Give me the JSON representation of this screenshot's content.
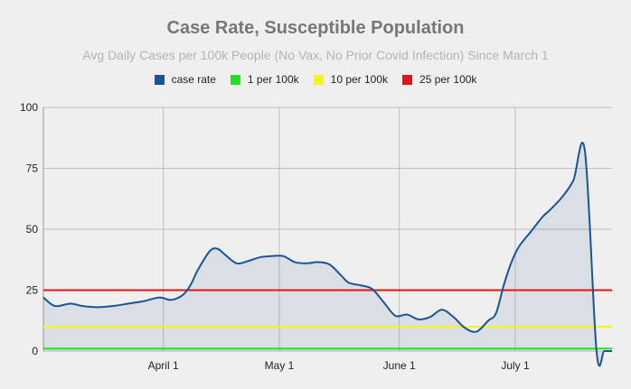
{
  "chart_data": {
    "type": "line",
    "title": "Case Rate, Susceptible Population",
    "subtitle": "Avg Daily Cases per 100k People (No Vax, No Prior Covid Infection) Since March 1",
    "xlabel": "",
    "ylabel": "",
    "ylim": [
      0,
      100
    ],
    "yticks": [
      "0",
      "25",
      "50",
      "75",
      "100"
    ],
    "xlim_days": [
      0,
      147
    ],
    "xticks": [
      {
        "label": "April 1",
        "day": 31
      },
      {
        "label": "May 1",
        "day": 61
      },
      {
        "label": "June 1",
        "day": 92
      },
      {
        "label": "July 1",
        "day": 122
      }
    ],
    "grid": true,
    "legend_position": "top",
    "series": [
      {
        "name": "case rate",
        "color": "#1a5496",
        "fill": true,
        "x": [
          0,
          3,
          7,
          10,
          14,
          18,
          22,
          26,
          30,
          33,
          36,
          38,
          40,
          43,
          45,
          47,
          50,
          53,
          56,
          59,
          62,
          65,
          68,
          71,
          74,
          77,
          79,
          82,
          85,
          88,
          91,
          94,
          97,
          100,
          103,
          106,
          109,
          112,
          115,
          117,
          119,
          121,
          123,
          126,
          129,
          131,
          134,
          137,
          140,
          143,
          145,
          147
        ],
        "y": [
          22,
          18.5,
          19.5,
          18.5,
          18,
          18.5,
          19.5,
          20.5,
          22,
          21,
          23,
          27,
          33.5,
          41,
          42,
          39.5,
          36,
          37,
          38.5,
          39,
          39,
          36.5,
          36,
          36.5,
          35.5,
          31,
          28,
          27,
          25.5,
          20,
          14.5,
          15,
          13,
          14,
          17,
          14,
          9.5,
          8,
          12.5,
          15.5,
          27,
          36.5,
          43,
          49,
          55,
          58,
          63,
          70,
          82,
          0,
          0,
          0
        ]
      },
      {
        "name": "1 per 100k",
        "color": "#1fe31f",
        "constant": 1
      },
      {
        "name": "10 per 100k",
        "color": "#f5f51a",
        "constant": 10
      },
      {
        "name": "25 per 100k",
        "color": "#e51414",
        "constant": 25
      }
    ]
  }
}
